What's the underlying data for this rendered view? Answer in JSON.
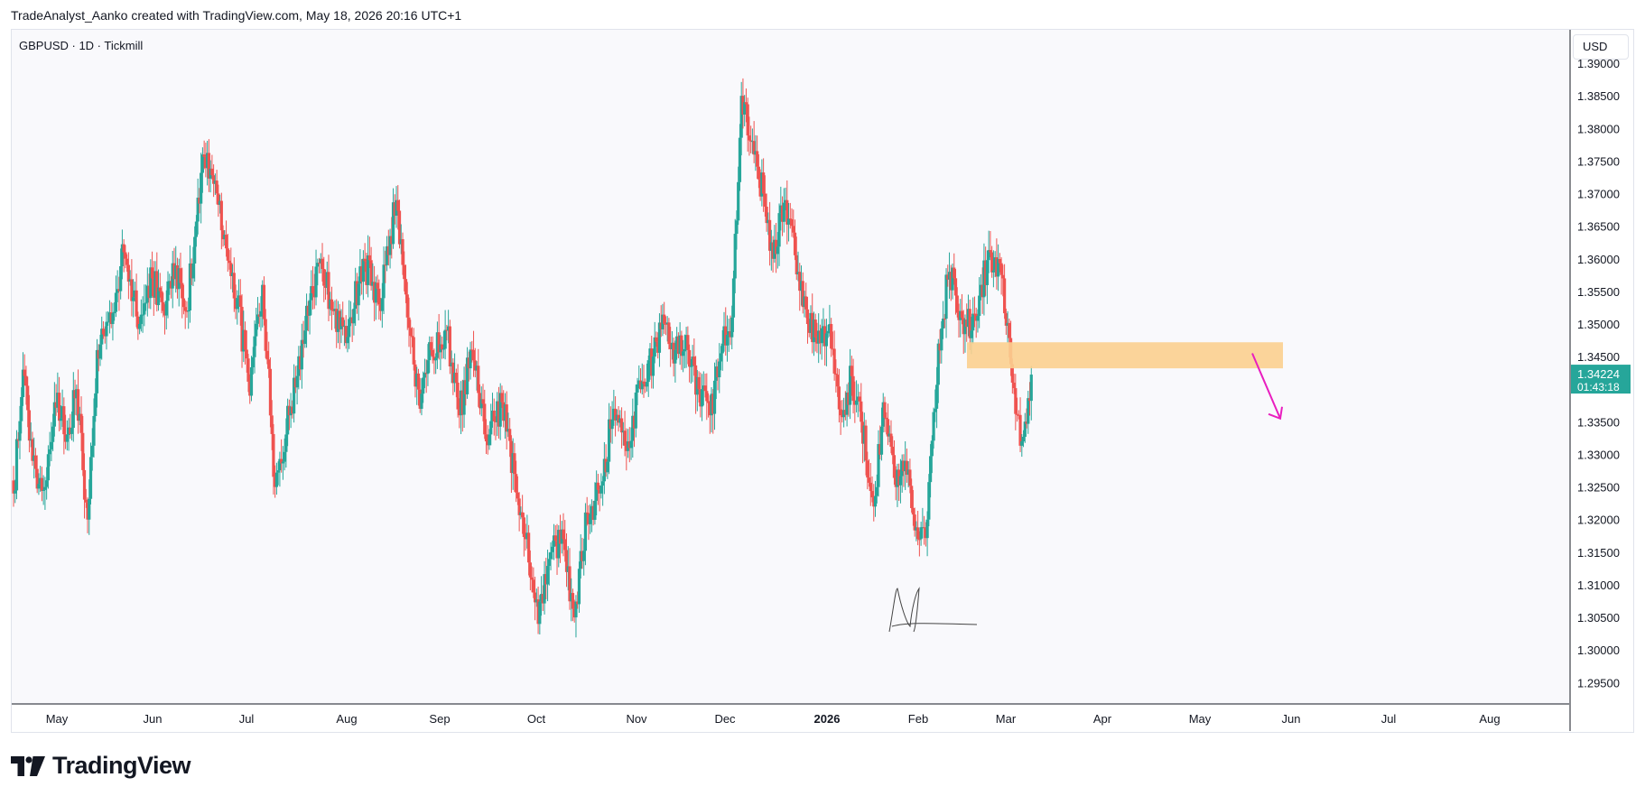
{
  "header": {
    "attribution": "TradeAnalyst_Aanko created with TradingView.com, May 18, 2026 20:16 UTC+1"
  },
  "chart_header": {
    "symbol_line": "GBPUSD · 1D · Tickmill",
    "currency": "USD"
  },
  "footer": {
    "logo_text": "TradingView",
    "logo_icon": "tradingview-logo-icon"
  },
  "colors": {
    "up": "#26a69a",
    "down": "#ef5350",
    "zone": "#fbcf8f",
    "arrow": "#e91ebf",
    "price_badge": "#26a69a"
  },
  "chart_data": {
    "type": "candlestick",
    "symbol": "GBPUSD",
    "interval": "1D",
    "broker": "Tickmill",
    "y_axis": {
      "ticks": [
        "1.39000",
        "1.38500",
        "1.38000",
        "1.37500",
        "1.37000",
        "1.36500",
        "1.36000",
        "1.35500",
        "1.35000",
        "1.34500",
        "1.34224",
        "1.33500",
        "1.33000",
        "1.32500",
        "1.32000",
        "1.31500",
        "1.31000",
        "1.30500",
        "1.30000",
        "1.29500"
      ],
      "ylim": [
        1.292,
        1.3925
      ]
    },
    "x_axis": {
      "labels": [
        {
          "text": "May",
          "bold": false
        },
        {
          "text": "Jun",
          "bold": false
        },
        {
          "text": "Jul",
          "bold": false
        },
        {
          "text": "Aug",
          "bold": false
        },
        {
          "text": "Sep",
          "bold": false
        },
        {
          "text": "Oct",
          "bold": false
        },
        {
          "text": "Nov",
          "bold": false
        },
        {
          "text": "Dec",
          "bold": false
        },
        {
          "text": "2026",
          "bold": true
        },
        {
          "text": "Feb",
          "bold": false
        },
        {
          "text": "Mar",
          "bold": false
        },
        {
          "text": "Apr",
          "bold": false
        },
        {
          "text": "May",
          "bold": false
        },
        {
          "text": "Jun",
          "bold": false
        },
        {
          "text": "Jul",
          "bold": false
        },
        {
          "text": "Aug",
          "bold": false
        }
      ]
    },
    "last_price": {
      "value": 1.34224,
      "label": "1.34224",
      "countdown": "01:43:18"
    },
    "zone": {
      "low": 1.3432,
      "high": 1.3472
    },
    "arrow": {
      "from_price": 1.3455,
      "to_price": 1.3355
    },
    "waypoints": [
      [
        0,
        1.324
      ],
      [
        6,
        1.343
      ],
      [
        12,
        1.329
      ],
      [
        20,
        1.325
      ],
      [
        26,
        1.338
      ],
      [
        34,
        1.333
      ],
      [
        40,
        1.34
      ],
      [
        47,
        1.32
      ],
      [
        53,
        1.346
      ],
      [
        62,
        1.35
      ],
      [
        70,
        1.361
      ],
      [
        80,
        1.35
      ],
      [
        88,
        1.357
      ],
      [
        95,
        1.352
      ],
      [
        103,
        1.359
      ],
      [
        110,
        1.352
      ],
      [
        120,
        1.376
      ],
      [
        128,
        1.372
      ],
      [
        133,
        1.363
      ],
      [
        142,
        1.354
      ],
      [
        150,
        1.339
      ],
      [
        158,
        1.356
      ],
      [
        166,
        1.325
      ],
      [
        175,
        1.336
      ],
      [
        185,
        1.349
      ],
      [
        195,
        1.36
      ],
      [
        203,
        1.352
      ],
      [
        212,
        1.348
      ],
      [
        222,
        1.36
      ],
      [
        232,
        1.353
      ],
      [
        243,
        1.369
      ],
      [
        250,
        1.351
      ],
      [
        258,
        1.337
      ],
      [
        265,
        1.346
      ],
      [
        275,
        1.349
      ],
      [
        283,
        1.336
      ],
      [
        291,
        1.346
      ],
      [
        300,
        1.332
      ],
      [
        310,
        1.338
      ],
      [
        318,
        1.327
      ],
      [
        325,
        1.317
      ],
      [
        333,
        1.304
      ],
      [
        341,
        1.315
      ],
      [
        349,
        1.317
      ],
      [
        356,
        1.305
      ],
      [
        364,
        1.321
      ],
      [
        372,
        1.324
      ],
      [
        381,
        1.337
      ],
      [
        390,
        1.332
      ],
      [
        398,
        1.34
      ],
      [
        406,
        1.345
      ],
      [
        414,
        1.35
      ],
      [
        420,
        1.346
      ],
      [
        428,
        1.346
      ],
      [
        435,
        1.34
      ],
      [
        442,
        1.336
      ],
      [
        450,
        1.347
      ],
      [
        456,
        1.351
      ],
      [
        462,
        1.385
      ],
      [
        468,
        1.378
      ],
      [
        476,
        1.37
      ],
      [
        482,
        1.36
      ],
      [
        490,
        1.369
      ],
      [
        498,
        1.358
      ],
      [
        504,
        1.35
      ],
      [
        510,
        1.347
      ],
      [
        518,
        1.35
      ],
      [
        525,
        1.336
      ],
      [
        532,
        1.342
      ],
      [
        538,
        1.335
      ],
      [
        546,
        1.322
      ],
      [
        552,
        1.338
      ],
      [
        560,
        1.325
      ],
      [
        566,
        1.329
      ],
      [
        574,
        1.317
      ],
      [
        580,
        1.32
      ],
      [
        587,
        1.347
      ],
      [
        594,
        1.358
      ],
      [
        601,
        1.352
      ],
      [
        608,
        1.349
      ],
      [
        614,
        1.356
      ],
      [
        620,
        1.361
      ],
      [
        628,
        1.357
      ],
      [
        634,
        1.341
      ],
      [
        640,
        1.332
      ],
      [
        646,
        1.3422
      ]
    ]
  }
}
